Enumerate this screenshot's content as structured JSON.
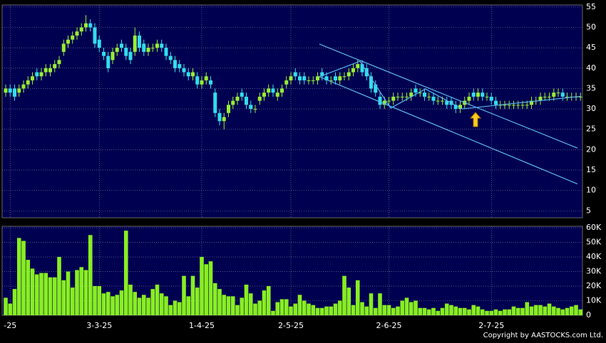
{
  "chart_data": [
    {
      "type": "candlestick",
      "categories": [
        null,
        "-25",
        null,
        null,
        null,
        null,
        null,
        null,
        null,
        null,
        null,
        null,
        null,
        null,
        null,
        null,
        null,
        null,
        null,
        null,
        null,
        "3-3-25",
        null,
        null,
        null,
        null,
        null,
        null,
        null,
        null,
        null,
        null,
        null,
        null,
        null,
        null,
        null,
        null,
        null,
        null,
        null,
        null,
        null,
        null,
        "1-4-25",
        null,
        null,
        null,
        null,
        null,
        null,
        null,
        null,
        null,
        null,
        null,
        null,
        null,
        null,
        null,
        null,
        null,
        null,
        null,
        "2-5-25",
        null,
        null,
        null,
        null,
        null,
        null,
        null,
        null,
        null,
        null,
        null,
        null,
        null,
        null,
        null,
        null,
        null,
        null,
        null,
        null,
        null,
        "2-6-25",
        null,
        null,
        null,
        null,
        null,
        null,
        null,
        null,
        null,
        null,
        null,
        null,
        null,
        null,
        null,
        null,
        null,
        null,
        null,
        null,
        null,
        null,
        "2-7-25",
        null,
        null,
        null,
        null,
        null,
        null,
        null,
        null,
        null,
        null,
        null,
        null,
        null,
        null,
        null,
        null,
        null,
        null,
        null,
        null
      ],
      "open": [
        34,
        35,
        35,
        34,
        35,
        36,
        37,
        39,
        38,
        39,
        39,
        40,
        41,
        44,
        46,
        47,
        48,
        49,
        50,
        51,
        50,
        47,
        44,
        43,
        42,
        44,
        46,
        45,
        44,
        44,
        48,
        46,
        44,
        45,
        45,
        46,
        45,
        43,
        42,
        41,
        40,
        39,
        38,
        38,
        36,
        37,
        37,
        34,
        29,
        27,
        29,
        31,
        32,
        34,
        33,
        31,
        30,
        32,
        33,
        34,
        35,
        33,
        34,
        36,
        37,
        39,
        38,
        38,
        37,
        37,
        37,
        39,
        38,
        37,
        38,
        37,
        38,
        38,
        39,
        40,
        41,
        40,
        38,
        36,
        33,
        31,
        32,
        32,
        33,
        33,
        33,
        33,
        35,
        34,
        34,
        33,
        33,
        32,
        32,
        32,
        32,
        31,
        30,
        31,
        32,
        34,
        33,
        34,
        33,
        33,
        32,
        31,
        31,
        31,
        31,
        31,
        31,
        31,
        31,
        32,
        32,
        33,
        33,
        33,
        34,
        34,
        33,
        33,
        33,
        33
      ],
      "close": [
        35,
        34,
        33,
        35,
        36,
        37,
        38,
        38,
        39,
        40,
        40,
        41,
        42,
        46,
        47,
        48,
        49,
        50,
        51,
        50,
        46,
        45,
        43,
        40,
        44,
        45,
        45,
        43,
        42,
        48,
        45,
        44,
        45,
        45,
        46,
        45,
        43,
        42,
        40,
        40,
        39,
        38,
        39,
        36,
        37,
        38,
        36,
        29,
        27,
        28,
        31,
        32,
        33,
        33,
        31,
        30,
        30,
        33,
        34,
        35,
        34,
        34,
        35,
        37,
        38,
        38,
        37,
        37,
        37,
        37,
        38,
        38,
        37,
        37,
        37,
        38,
        38,
        39,
        40,
        41,
        39,
        38,
        35,
        34,
        31,
        32,
        32,
        33,
        33,
        33,
        33,
        34,
        34,
        34,
        33,
        33,
        32,
        32,
        32,
        31,
        31,
        30,
        31,
        32,
        33,
        33,
        34,
        33,
        33,
        32,
        31,
        31,
        31,
        31,
        31,
        31,
        31,
        31,
        32,
        32,
        33,
        33,
        33,
        34,
        34,
        33,
        33,
        33,
        33,
        33
      ],
      "high": [
        36,
        36,
        36,
        36,
        37,
        38,
        39,
        40,
        40,
        41,
        41,
        42,
        43,
        47,
        48,
        49,
        50,
        51,
        53,
        52,
        51,
        48,
        45,
        44,
        45,
        46,
        47,
        46,
        45,
        50,
        49,
        47,
        46,
        46,
        47,
        47,
        46,
        44,
        43,
        42,
        41,
        40,
        40,
        39,
        38,
        39,
        38,
        35,
        30,
        29,
        32,
        33,
        34,
        35,
        34,
        32,
        31,
        34,
        35,
        36,
        36,
        35,
        36,
        38,
        39,
        40,
        39,
        39,
        38,
        38,
        39,
        40,
        39,
        38,
        39,
        39,
        39,
        40,
        41,
        42,
        42,
        41,
        39,
        37,
        34,
        33,
        33,
        34,
        34,
        34,
        34,
        35,
        36,
        35,
        35,
        34,
        34,
        33,
        33,
        33,
        33,
        32,
        32,
        33,
        34,
        35,
        35,
        35,
        34,
        34,
        33,
        32,
        32,
        32,
        32,
        32,
        32,
        32,
        33,
        33,
        34,
        34,
        34,
        35,
        35,
        35,
        34,
        34,
        34,
        34
      ],
      "low": [
        33,
        33,
        32,
        33,
        34,
        35,
        36,
        37,
        37,
        38,
        38,
        39,
        40,
        43,
        45,
        46,
        47,
        48,
        49,
        49,
        45,
        44,
        42,
        39,
        41,
        43,
        44,
        42,
        41,
        43,
        44,
        43,
        43,
        44,
        44,
        44,
        42,
        41,
        39,
        39,
        38,
        37,
        37,
        35,
        35,
        36,
        35,
        28,
        26,
        25,
        28,
        30,
        31,
        32,
        30,
        29,
        29,
        31,
        32,
        33,
        33,
        32,
        33,
        35,
        36,
        37,
        36,
        36,
        36,
        36,
        36,
        37,
        36,
        36,
        36,
        36,
        37,
        37,
        38,
        39,
        38,
        37,
        34,
        33,
        30,
        30,
        31,
        31,
        32,
        32,
        32,
        32,
        33,
        33,
        32,
        32,
        31,
        31,
        31,
        30,
        30,
        29,
        29,
        30,
        31,
        32,
        32,
        32,
        32,
        31,
        30,
        30,
        30,
        30,
        30,
        30,
        30,
        30,
        30,
        31,
        31,
        32,
        32,
        32,
        33,
        32,
        32,
        32,
        32,
        32
      ],
      "up_color": "#99ee33",
      "down_color": "#33ddee",
      "ylim": [
        3.3,
        55.5
      ],
      "yticks": [
        5,
        10,
        15,
        20,
        25,
        30,
        35,
        40,
        45,
        50,
        55
      ],
      "grid": true,
      "trend_lines": [
        {
          "color": "#5ab8f0",
          "x": [
            70.4,
            128.3
          ],
          "values": [
            45.9,
            20.4
          ]
        },
        {
          "color": "#5ab8f0",
          "x": [
            70.4,
            128.3
          ],
          "values": [
            37.9,
            11.6
          ]
        },
        {
          "color": "#5ab8f0",
          "x": [
            70.4,
            79.5,
            86.4,
            94.2,
            102.4,
            129.1
          ],
          "values": [
            37.9,
            41.7,
            30.2,
            34.9,
            30.0,
            33.1
          ]
        }
      ]
    },
    {
      "type": "bar",
      "values": [
        12000,
        8000,
        18000,
        53000,
        51000,
        38000,
        32000,
        28000,
        29000,
        29000,
        26000,
        26000,
        40000,
        24000,
        30000,
        19000,
        31000,
        33000,
        31000,
        55000,
        20000,
        20000,
        15000,
        16000,
        13000,
        14000,
        17000,
        58000,
        21000,
        16000,
        12000,
        14000,
        12000,
        18000,
        21000,
        15000,
        13000,
        7000,
        10000,
        9000,
        27000,
        13000,
        27000,
        19000,
        40000,
        35000,
        37000,
        22000,
        18000,
        14000,
        13000,
        13000,
        7000,
        12000,
        21000,
        15000,
        8000,
        10000,
        17000,
        20000,
        3000,
        9000,
        11000,
        11000,
        6000,
        8000,
        14000,
        10000,
        8000,
        7000,
        5000,
        5000,
        6000,
        6000,
        8000,
        10000,
        27000,
        19000,
        7000,
        24000,
        9000,
        6000,
        15000,
        5000,
        15000,
        7000,
        7000,
        5000,
        6000,
        10000,
        12000,
        9000,
        10000,
        5000,
        5000,
        4000,
        5000,
        3000,
        5000,
        8000,
        7000,
        6000,
        5000,
        5000,
        4000,
        7000,
        6000,
        4000,
        3000,
        3000,
        4000,
        3000,
        4000,
        4000,
        6000,
        5000,
        5000,
        9000,
        6000,
        7000,
        7000,
        6000,
        8000,
        6000,
        5000,
        4000,
        5000,
        6000,
        7000,
        4000
      ],
      "color": "#88ee22",
      "ylim": [
        0,
        61000
      ],
      "yticks": [
        0,
        {
          "value": 10000,
          "label": "10K"
        },
        {
          "value": 20000,
          "label": "20K"
        },
        {
          "value": 30000,
          "label": "30K"
        },
        {
          "value": 40000,
          "label": "40K"
        },
        {
          "value": 50000,
          "label": "50K"
        },
        {
          "value": 60000,
          "label": "60K"
        }
      ],
      "grid": true
    }
  ],
  "copyright": "Copyright by AASTOCKS.com Ltd."
}
